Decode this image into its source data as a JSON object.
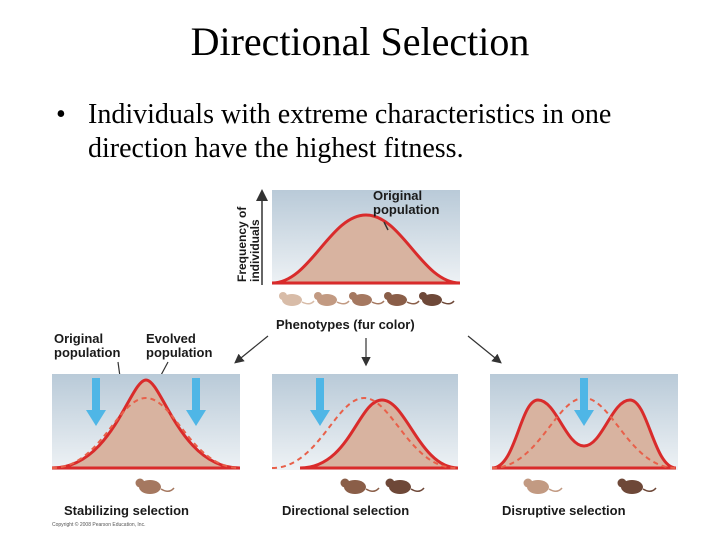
{
  "slide": {
    "title": "Directional Selection",
    "bullet": "Individuals with extreme characteristics in one direction have the highest fitness."
  },
  "figure": {
    "top": {
      "label_line1": "Original",
      "label_line2": "population",
      "yaxis_line1": "Frequency of",
      "yaxis_line2": "individuals",
      "xaxis": "Phenotypes (fur color)"
    },
    "left_labels": {
      "original_line1": "Original",
      "original_line2": "population",
      "evolved_line1": "Evolved",
      "evolved_line2": "population"
    },
    "panels": [
      {
        "caption": "Stabilizing selection"
      },
      {
        "caption": "Directional selection"
      },
      {
        "caption": "Disruptive selection"
      }
    ],
    "copyright": "Copyright © 2008 Pearson Education, Inc.",
    "colors": {
      "panel_bg_top": "#b9cad8",
      "panel_bg_bottom": "#eef2f5",
      "curve": "#d92b2b",
      "fill": "#d8b3a0",
      "arrow": "#4fb6e6",
      "mouse": "#a57860"
    }
  }
}
